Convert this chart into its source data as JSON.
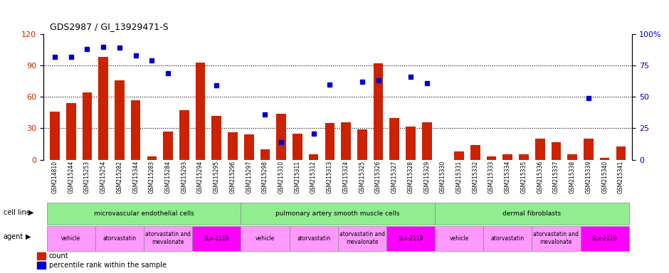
{
  "title": "GDS2987 / GI_13929471-S",
  "samples": [
    "GSM214810",
    "GSM215244",
    "GSM215253",
    "GSM215254",
    "GSM215282",
    "GSM215344",
    "GSM215283",
    "GSM215284",
    "GSM215293",
    "GSM215294",
    "GSM215295",
    "GSM215296",
    "GSM215297",
    "GSM215298",
    "GSM215310",
    "GSM215311",
    "GSM215312",
    "GSM215313",
    "GSM215324",
    "GSM215325",
    "GSM215326",
    "GSM215327",
    "GSM215328",
    "GSM215329",
    "GSM215330",
    "GSM215331",
    "GSM215332",
    "GSM215333",
    "GSM215334",
    "GSM215335",
    "GSM215336",
    "GSM215337",
    "GSM215338",
    "GSM215339",
    "GSM215340",
    "GSM215341"
  ],
  "counts": [
    46,
    54,
    64,
    98,
    76,
    57,
    3,
    27,
    47,
    93,
    42,
    26,
    24,
    10,
    44,
    25,
    5,
    35,
    36,
    29,
    92,
    40,
    32,
    36,
    0,
    8,
    14,
    3,
    5,
    5,
    20,
    17,
    5,
    20,
    2,
    13
  ],
  "left_ylim": [
    0,
    120
  ],
  "right_ylim": [
    0,
    100
  ],
  "left_yticks": [
    0,
    30,
    60,
    90,
    120
  ],
  "right_yticks": [
    0,
    25,
    50,
    75,
    100
  ],
  "bar_color": "#CC2200",
  "dot_color": "#0000CC",
  "cell_line_groups": [
    {
      "label": "microvascular endothelial cells",
      "start": 0,
      "end": 12,
      "color": "#90EE90"
    },
    {
      "label": "pulmonary artery smooth muscle cells",
      "start": 12,
      "end": 24,
      "color": "#90EE90"
    },
    {
      "label": "dermal fibroblasts",
      "start": 24,
      "end": 36,
      "color": "#90EE90"
    }
  ],
  "agent_groups": [
    {
      "label": "vehicle",
      "start": 0,
      "end": 3,
      "color": "#FF99FF"
    },
    {
      "label": "atorvastatin",
      "start": 3,
      "end": 6,
      "color": "#FF99FF"
    },
    {
      "label": "atorvastatin and\nmevalonate",
      "start": 6,
      "end": 9,
      "color": "#FF99FF"
    },
    {
      "label": "SLx-2119",
      "start": 9,
      "end": 12,
      "color": "#FF00FF"
    },
    {
      "label": "vehicle",
      "start": 12,
      "end": 15,
      "color": "#FF99FF"
    },
    {
      "label": "atorvastatin",
      "start": 15,
      "end": 18,
      "color": "#FF99FF"
    },
    {
      "label": "atorvastatin and\nmevalonate",
      "start": 18,
      "end": 21,
      "color": "#FF99FF"
    },
    {
      "label": "SLx-2119",
      "start": 21,
      "end": 24,
      "color": "#FF00FF"
    },
    {
      "label": "vehicle",
      "start": 24,
      "end": 27,
      "color": "#FF99FF"
    },
    {
      "label": "atorvastatin",
      "start": 27,
      "end": 30,
      "color": "#FF99FF"
    },
    {
      "label": "atorvastatin and\nmevalonate",
      "start": 30,
      "end": 33,
      "color": "#FF99FF"
    },
    {
      "label": "SLx-2119",
      "start": 33,
      "end": 36,
      "color": "#FF00FF"
    }
  ],
  "percentile_data": {
    "0": 82,
    "1": 82,
    "2": 88,
    "3": 90,
    "4": 89,
    "5": 83,
    "6": 79,
    "7": 69,
    "10": 59,
    "13": 36,
    "14": 14,
    "16": 21,
    "17": 60,
    "19": 62,
    "20": 63,
    "22": 66,
    "23": 61,
    "33": 49
  }
}
